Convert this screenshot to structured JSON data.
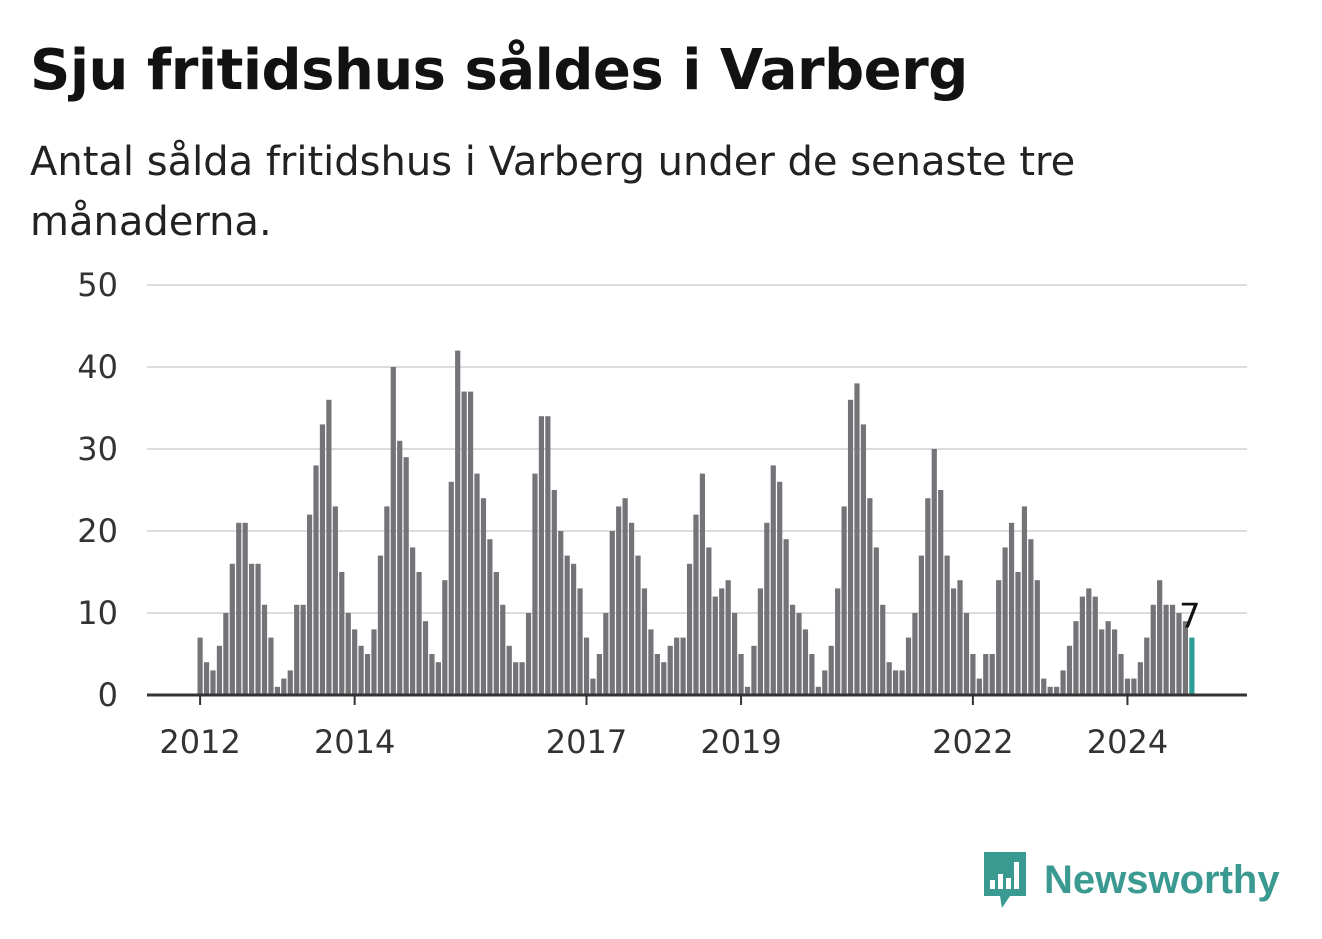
{
  "header": {
    "title": "Sju fritidshus såldes i Varberg",
    "subtitle": "Antal sålda fritidshus i Varberg under de senaste tre månaderna."
  },
  "brand": {
    "name": "Newsworthy",
    "icon": "newsworthy-logo-icon",
    "color": "#3a9a92"
  },
  "chart_data": {
    "type": "bar",
    "title": "Sju fritidshus såldes i Varberg",
    "subtitle": "Antal sålda fritidshus i Varberg under de senaste tre månaderna.",
    "x_start": "2012-01",
    "x_tick_labels": [
      "2012",
      "2014",
      "2017",
      "2019",
      "2022",
      "2024"
    ],
    "y_ticks": [
      0,
      10,
      20,
      30,
      40,
      50
    ],
    "ylim": [
      0,
      50
    ],
    "grid": true,
    "bar_color": "#747378",
    "highlight_color": "#2a9d96",
    "highlight_label": "7",
    "values": [
      7,
      4,
      3,
      6,
      10,
      16,
      21,
      21,
      16,
      16,
      11,
      7,
      1,
      2,
      3,
      11,
      11,
      22,
      28,
      33,
      36,
      23,
      15,
      10,
      8,
      6,
      5,
      8,
      17,
      23,
      40,
      31,
      29,
      18,
      15,
      9,
      5,
      4,
      14,
      26,
      42,
      37,
      37,
      27,
      24,
      19,
      15,
      11,
      6,
      4,
      4,
      10,
      27,
      34,
      34,
      25,
      20,
      17,
      16,
      13,
      7,
      2,
      5,
      10,
      20,
      23,
      24,
      21,
      17,
      13,
      8,
      5,
      4,
      6,
      7,
      7,
      16,
      22,
      27,
      18,
      12,
      13,
      14,
      10,
      5,
      1,
      6,
      13,
      21,
      28,
      26,
      19,
      11,
      10,
      8,
      5,
      1,
      3,
      6,
      13,
      23,
      36,
      38,
      33,
      24,
      18,
      11,
      4,
      3,
      3,
      7,
      10,
      17,
      24,
      30,
      25,
      17,
      13,
      14,
      10,
      5,
      2,
      5,
      5,
      14,
      18,
      21,
      15,
      23,
      19,
      14,
      2,
      1,
      1,
      3,
      6,
      9,
      12,
      13,
      12,
      8,
      9,
      8,
      5,
      2,
      2,
      4,
      7,
      11,
      14,
      11,
      11,
      10,
      9,
      7
    ]
  }
}
